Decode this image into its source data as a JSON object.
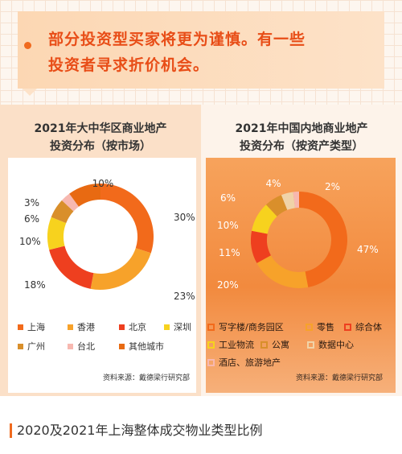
{
  "quote": {
    "line1": "部分投资型买家将更为谨慎。有一些",
    "line2": "投资者寻求折价机会。"
  },
  "chart_data": [
    {
      "type": "pie",
      "title_line1": "2021年大中华区商业地产",
      "title_line2": "投资分布（按市场）",
      "labels": [
        "上海",
        "香港",
        "北京",
        "深圳",
        "广州",
        "台北",
        "其他城市"
      ],
      "values": [
        30,
        23,
        18,
        10,
        6,
        3,
        10
      ],
      "value_labels": [
        "30%",
        "23%",
        "18%",
        "10%",
        "6%",
        "3%",
        "10%"
      ],
      "colors": [
        "#f26a1b",
        "#f7a22a",
        "#ee3f1f",
        "#f7d21e",
        "#d98f2b",
        "#f7b8b0",
        "#e86a12"
      ],
      "source": "资料来源：戴德梁行研究部"
    },
    {
      "type": "pie",
      "title_line1": "2021年中国内地商业地产",
      "title_line2": "投资分布（按资产类型）",
      "labels": [
        "写字楼/商务园区",
        "零售",
        "综合体",
        "工业物流",
        "公寓",
        "数据中心",
        "酒店、旅游地产"
      ],
      "values": [
        47,
        20,
        11,
        10,
        6,
        4,
        2
      ],
      "value_labels": [
        "47%",
        "20%",
        "11%",
        "10%",
        "6%",
        "4%",
        "2%"
      ],
      "colors": [
        "#f26a1b",
        "#f7a22a",
        "#ee3f1f",
        "#f7d21e",
        "#d98f2b",
        "#f0d3a8",
        "#f7b8b0"
      ],
      "source": "资料来源：戴德梁行研究部"
    }
  ],
  "bottom": {
    "title": "2020及2021年上海整体成交物业类型比例"
  }
}
